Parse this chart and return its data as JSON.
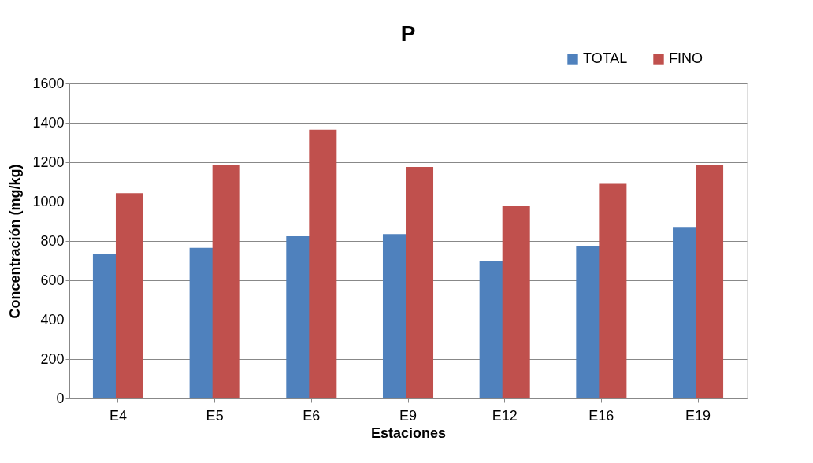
{
  "chart_data": {
    "type": "bar",
    "title": "P",
    "xlabel": "Estaciones",
    "ylabel": "Concentración (mg/kg)",
    "categories": [
      "E4",
      "E5",
      "E6",
      "E9",
      "E12",
      "E16",
      "E19"
    ],
    "series": [
      {
        "name": "TOTAL",
        "color": "#4f81bd",
        "values": [
          733,
          765,
          824,
          835,
          698,
          773,
          871
        ]
      },
      {
        "name": "FINO",
        "color": "#c0504d",
        "values": [
          1043,
          1184,
          1365,
          1176,
          980,
          1090,
          1188
        ]
      }
    ],
    "ylim": [
      0,
      1600
    ],
    "yticks": [
      0,
      200,
      400,
      600,
      800,
      1000,
      1200,
      1400,
      1600
    ],
    "grid": "y",
    "legend": "top right"
  }
}
